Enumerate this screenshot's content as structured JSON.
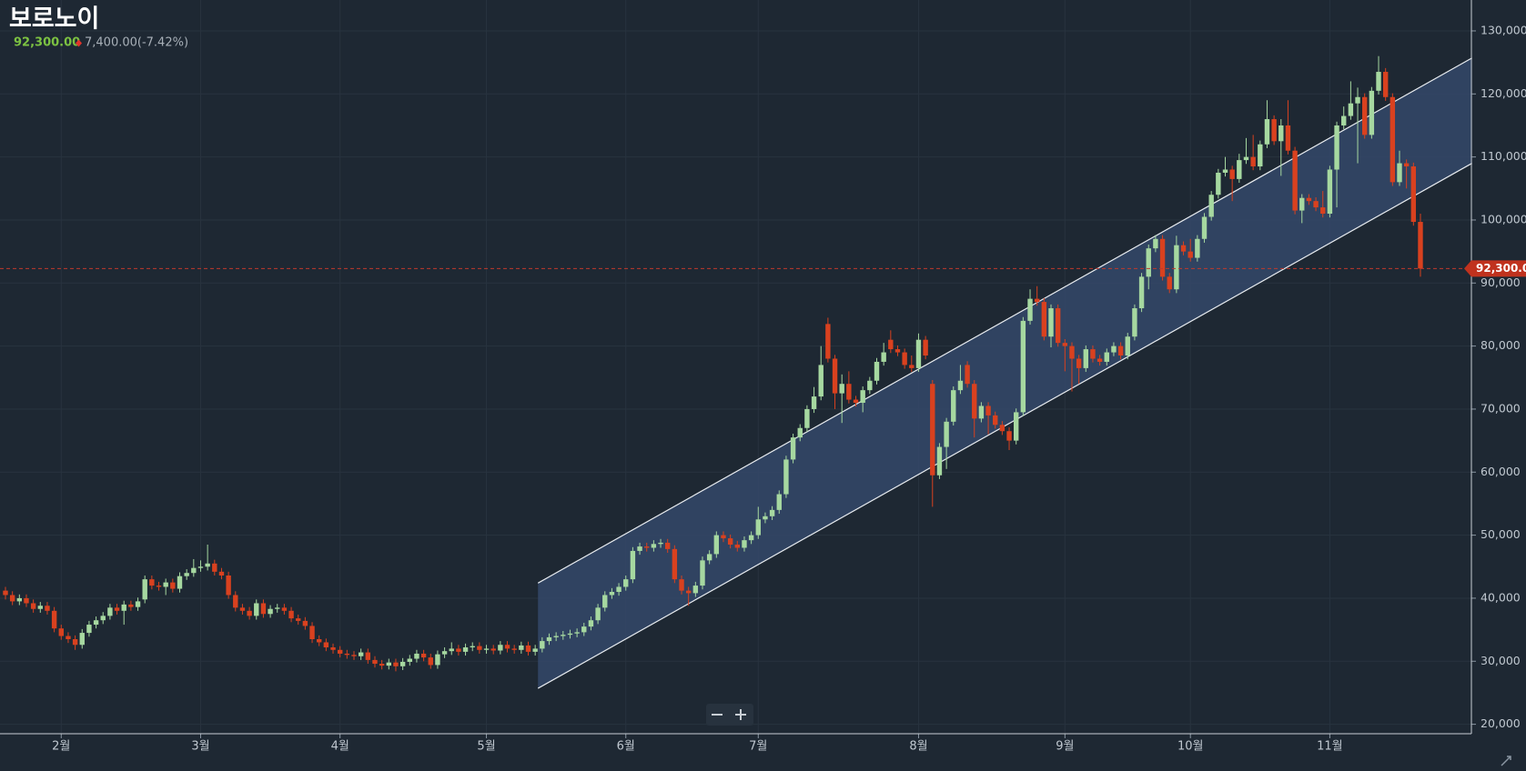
{
  "chart_data": {
    "type": "candlestick",
    "title": "보로노이",
    "price_label": "92,300.00",
    "change_label": "7,400.00(-7.42%)",
    "last_label": "92,300.00",
    "up_color": "#a6d8a0",
    "down_color": "#d9411f",
    "grid": true,
    "ylim": [
      18500,
      134900
    ],
    "yticks": [
      {
        "value": 20000,
        "label": "20,000"
      },
      {
        "value": 30000,
        "label": "30,000"
      },
      {
        "value": 40000,
        "label": "40,000"
      },
      {
        "value": 50000,
        "label": "50,000"
      },
      {
        "value": 60000,
        "label": "60,000"
      },
      {
        "value": 70000,
        "label": "70,000"
      },
      {
        "value": 80000,
        "label": "80,000"
      },
      {
        "value": 90000,
        "label": "90,000"
      },
      {
        "value": 100000,
        "label": "100,000"
      },
      {
        "value": 110000,
        "label": "110,000"
      },
      {
        "value": 120000,
        "label": "120,000"
      },
      {
        "value": 130000,
        "label": "130,000"
      }
    ],
    "categories": [
      null,
      null,
      null,
      null,
      null,
      null,
      null,
      null,
      "2월",
      null,
      null,
      null,
      null,
      null,
      null,
      null,
      null,
      null,
      null,
      null,
      null,
      null,
      null,
      null,
      null,
      null,
      null,
      null,
      "3월",
      null,
      null,
      null,
      null,
      null,
      null,
      null,
      null,
      null,
      null,
      null,
      null,
      null,
      null,
      null,
      null,
      null,
      null,
      null,
      "4월",
      null,
      null,
      null,
      null,
      null,
      null,
      null,
      null,
      null,
      null,
      null,
      null,
      null,
      null,
      null,
      null,
      null,
      null,
      null,
      null,
      "5월",
      null,
      null,
      null,
      null,
      null,
      null,
      null,
      null,
      null,
      null,
      null,
      null,
      null,
      null,
      null,
      null,
      null,
      null,
      null,
      "6월",
      null,
      null,
      null,
      null,
      null,
      null,
      null,
      null,
      null,
      null,
      null,
      null,
      null,
      null,
      null,
      null,
      null,
      null,
      "7월",
      null,
      null,
      null,
      null,
      null,
      null,
      null,
      null,
      null,
      null,
      null,
      null,
      null,
      null,
      null,
      null,
      null,
      null,
      null,
      null,
      null,
      null,
      "8월",
      null,
      null,
      null,
      null,
      null,
      null,
      null,
      null,
      null,
      null,
      null,
      null,
      null,
      null,
      null,
      null,
      null,
      null,
      null,
      null,
      "9월",
      null,
      null,
      null,
      null,
      null,
      null,
      null,
      null,
      null,
      null,
      null,
      null,
      null,
      null,
      null,
      null,
      null,
      "10월",
      null,
      null,
      null,
      null,
      null,
      null,
      null,
      null,
      null,
      null,
      null,
      null,
      null,
      null,
      null,
      null,
      null,
      null,
      null,
      "11월",
      null,
      null,
      null,
      null,
      null,
      null,
      null,
      null,
      null,
      null,
      null,
      null,
      null
    ],
    "open": [
      41200,
      40500,
      39500,
      40000,
      39200,
      38300,
      38800,
      38000,
      35200,
      34000,
      33500,
      32600,
      34500,
      35800,
      36500,
      37200,
      38500,
      38000,
      39000,
      38600,
      39800,
      43000,
      42000,
      41800,
      42500,
      41500,
      43500,
      44000,
      44800,
      45000,
      45500,
      44200,
      43600,
      40500,
      38500,
      38000,
      37200,
      39200,
      37500,
      38300,
      38500,
      38000,
      36800,
      36400,
      35600,
      33500,
      33000,
      32200,
      31800,
      31200,
      31000,
      30800,
      31400,
      30200,
      29600,
      29300,
      29800,
      29200,
      29900,
      30400,
      31200,
      30600,
      29400,
      31100,
      31600,
      32000,
      31500,
      32200,
      32400,
      31800,
      32000,
      31700,
      32600,
      32000,
      31800,
      32500,
      31500,
      32000,
      33200,
      33800,
      34000,
      34200,
      34400,
      34600,
      35500,
      36500,
      38500,
      40500,
      41000,
      41800,
      43000,
      47500,
      48200,
      48000,
      48600,
      48800,
      47800,
      43000,
      41200,
      40800,
      42000,
      46000,
      47000,
      50000,
      49500,
      48500,
      48000,
      49200,
      50000,
      52500,
      53000,
      54000,
      56500,
      62000,
      65500,
      67000,
      70000,
      72000,
      83500,
      78000,
      72500,
      74000,
      71500,
      71000,
      73000,
      74500,
      77500,
      81000,
      79500,
      79000,
      77000,
      76500,
      81000,
      74000,
      59500,
      64000,
      68000,
      73000,
      77000,
      74000,
      68500,
      70500,
      69000,
      67500,
      66500,
      65000,
      69500,
      84000,
      87500,
      87000,
      81500,
      86000,
      80500,
      80000,
      78000,
      76500,
      79500,
      78000,
      77500,
      79000,
      80000,
      78500,
      81500,
      86000,
      91000,
      95500,
      97000,
      91000,
      89000,
      96000,
      95000,
      94000,
      97000,
      100500,
      104000,
      107500,
      108000,
      106500,
      109500,
      110000,
      108500,
      112000,
      116000,
      112500,
      115000,
      111000,
      101500,
      103500,
      103000,
      102000,
      101000,
      108000,
      115000,
      116500,
      118500,
      119500,
      113500,
      120500,
      123500,
      119500,
      106000,
      109000,
      108500,
      99700
    ],
    "high": [
      41800,
      41100,
      40600,
      40600,
      39800,
      39400,
      39400,
      38600,
      35800,
      34600,
      34100,
      35100,
      36400,
      37100,
      37800,
      39100,
      39100,
      39600,
      39600,
      40100,
      43600,
      43600,
      42600,
      43100,
      43100,
      44100,
      44600,
      46200,
      46000,
      48500,
      46100,
      44800,
      44200,
      41100,
      39100,
      38600,
      39800,
      39800,
      38900,
      39100,
      39100,
      38600,
      37400,
      37000,
      36200,
      34100,
      33600,
      32800,
      32400,
      31800,
      31600,
      32000,
      32000,
      30800,
      30200,
      30400,
      30400,
      30500,
      31000,
      31800,
      31800,
      31200,
      31700,
      32200,
      33000,
      32600,
      32800,
      33000,
      33000,
      32600,
      32600,
      33200,
      33200,
      32600,
      33100,
      33100,
      32600,
      33800,
      34400,
      34600,
      34800,
      35000,
      35200,
      36100,
      37100,
      39100,
      41100,
      41600,
      42400,
      43600,
      48100,
      48800,
      48800,
      49200,
      49400,
      49400,
      48400,
      43600,
      41800,
      42600,
      46600,
      47600,
      50600,
      50600,
      50100,
      49100,
      49800,
      50600,
      54500,
      53600,
      54600,
      57100,
      62600,
      66100,
      67600,
      70600,
      73500,
      80000,
      84500,
      78600,
      75500,
      76000,
      72100,
      73600,
      75100,
      78100,
      80500,
      82500,
      80100,
      79600,
      78500,
      82000,
      81600,
      74600,
      64600,
      68600,
      73600,
      77000,
      77600,
      74600,
      71100,
      71100,
      69600,
      68100,
      67100,
      70100,
      84600,
      89000,
      89500,
      87600,
      86600,
      86600,
      81100,
      80600,
      78600,
      80100,
      80100,
      78600,
      79600,
      80600,
      80600,
      82100,
      86600,
      91600,
      96100,
      97600,
      97600,
      91600,
      97500,
      96600,
      97000,
      97600,
      101100,
      104600,
      108100,
      110000,
      108600,
      110500,
      113000,
      113500,
      112600,
      119000,
      116600,
      116000,
      119000,
      111600,
      104100,
      104100,
      103600,
      104600,
      108600,
      115600,
      118000,
      122000,
      121000,
      120100,
      121100,
      126000,
      124100,
      120100,
      111000,
      109600,
      109100,
      101000
    ],
    "low": [
      39800,
      38900,
      38900,
      38600,
      37700,
      37700,
      37400,
      34600,
      33400,
      32900,
      31800,
      32000,
      33900,
      35200,
      35900,
      36600,
      37400,
      35800,
      38000,
      38000,
      39200,
      41400,
      41200,
      40500,
      40900,
      40900,
      42900,
      43400,
      44200,
      44400,
      43600,
      43000,
      39900,
      37900,
      37400,
      36600,
      36600,
      36900,
      36900,
      37700,
      37400,
      36200,
      35800,
      35000,
      32900,
      32400,
      31600,
      31200,
      30600,
      30400,
      30200,
      30200,
      29600,
      29000,
      28700,
      28700,
      28400,
      28600,
      29300,
      29800,
      30000,
      28800,
      28800,
      30500,
      31000,
      30900,
      30900,
      31600,
      31200,
      31200,
      31100,
      31100,
      31400,
      31200,
      31200,
      30900,
      30900,
      31400,
      32600,
      33200,
      33400,
      33600,
      33800,
      34000,
      34900,
      35900,
      37900,
      39900,
      40400,
      41200,
      42400,
      46900,
      47400,
      47400,
      48000,
      47200,
      42400,
      40600,
      38800,
      40200,
      41400,
      45400,
      46400,
      48900,
      47900,
      47400,
      47400,
      48600,
      49400,
      51900,
      52400,
      53400,
      55900,
      61400,
      64900,
      66400,
      69400,
      71400,
      77400,
      70000,
      67800,
      70900,
      70400,
      69500,
      72400,
      73900,
      76900,
      78900,
      78400,
      76400,
      75900,
      75900,
      77900,
      54500,
      58900,
      60500,
      67400,
      72400,
      73400,
      65500,
      67900,
      66000,
      66900,
      65900,
      63500,
      64400,
      68900,
      83400,
      86400,
      80900,
      79800,
      79900,
      76000,
      72800,
      74000,
      75900,
      77400,
      76900,
      76900,
      78400,
      77900,
      77900,
      80900,
      85400,
      89000,
      94900,
      90400,
      88400,
      88400,
      94400,
      93400,
      93400,
      96400,
      99900,
      103400,
      106900,
      103000,
      105900,
      108900,
      107900,
      107900,
      111400,
      111900,
      107000,
      110400,
      100900,
      99500,
      102400,
      101400,
      100400,
      100400,
      102000,
      114400,
      115900,
      109000,
      112900,
      112900,
      119900,
      118900,
      105400,
      105400,
      105000,
      99100,
      91000
    ],
    "close": [
      40500,
      39500,
      40000,
      39200,
      38300,
      38800,
      38000,
      35200,
      34000,
      33500,
      32600,
      34500,
      35800,
      36500,
      37200,
      38500,
      38000,
      39000,
      38600,
      39500,
      43000,
      42000,
      41800,
      42500,
      41500,
      43500,
      44000,
      44800,
      45000,
      45500,
      44200,
      43600,
      40500,
      38500,
      38000,
      37200,
      39200,
      37500,
      38300,
      38500,
      38000,
      36800,
      36400,
      35600,
      33500,
      33000,
      32200,
      31800,
      31200,
      31000,
      30800,
      31400,
      30200,
      29600,
      29300,
      29800,
      29200,
      29900,
      30400,
      31200,
      30600,
      29400,
      31100,
      31600,
      32000,
      31500,
      32200,
      32400,
      31800,
      32000,
      31700,
      32600,
      32000,
      31800,
      32500,
      31500,
      32000,
      33200,
      33800,
      34000,
      34200,
      34400,
      34600,
      35500,
      36500,
      38500,
      40500,
      41000,
      41800,
      43000,
      47500,
      48200,
      48000,
      48600,
      48800,
      47800,
      43000,
      41200,
      40800,
      42000,
      46000,
      47000,
      50000,
      49500,
      48500,
      48000,
      49200,
      50000,
      52500,
      53000,
      54000,
      56500,
      62000,
      65500,
      67000,
      70000,
      72000,
      77000,
      78000,
      72500,
      74000,
      71500,
      71000,
      73000,
      74500,
      77500,
      79000,
      79500,
      79000,
      77000,
      76500,
      81000,
      78500,
      59500,
      64000,
      68000,
      73000,
      74500,
      74000,
      68500,
      70500,
      69000,
      67500,
      66500,
      65000,
      69500,
      84000,
      87500,
      87000,
      81500,
      86000,
      80500,
      80000,
      78000,
      76500,
      79500,
      78000,
      77500,
      79000,
      80000,
      78500,
      81500,
      86000,
      91000,
      95500,
      97000,
      91000,
      89000,
      96000,
      95000,
      94000,
      97000,
      100500,
      104000,
      107500,
      108000,
      106500,
      109500,
      110000,
      108500,
      112000,
      116000,
      112500,
      115000,
      111000,
      101500,
      103500,
      103000,
      102000,
      101000,
      108000,
      115000,
      116500,
      118500,
      119500,
      113500,
      120500,
      123500,
      119500,
      106000,
      109000,
      108500,
      99700,
      92300
    ],
    "channel": {
      "x": [
        76.4,
        210.4
      ],
      "upper": [
        42400,
        125700
      ],
      "lower": [
        25700,
        109000
      ],
      "color": "#34486a"
    }
  }
}
